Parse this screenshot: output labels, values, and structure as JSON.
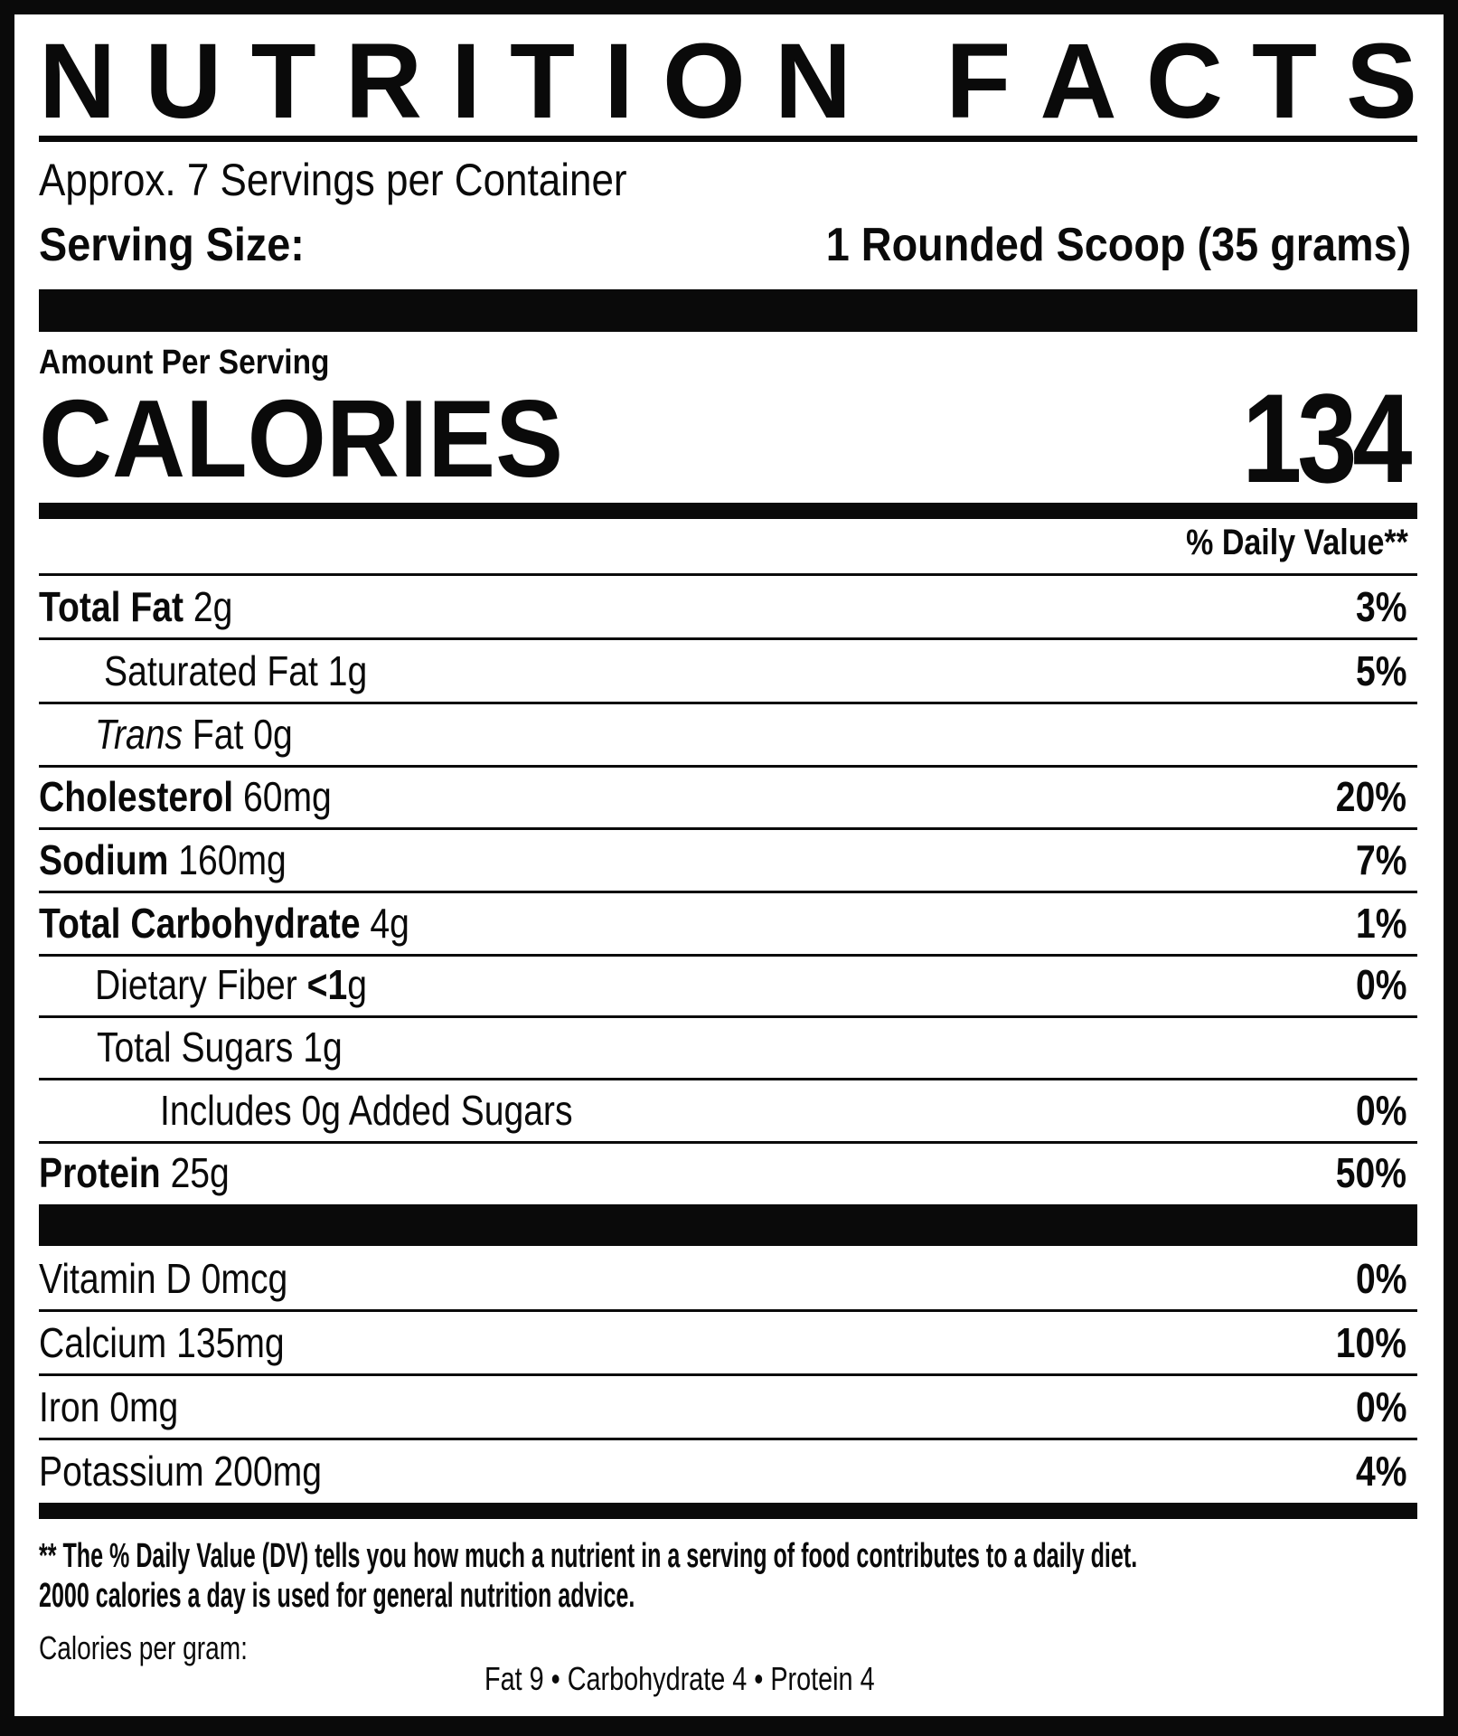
{
  "title": "NUTRITION FACTS",
  "title_letters": [
    "N",
    "U",
    "T",
    "R",
    "I",
    "T",
    "I",
    "O",
    "N",
    " ",
    "F",
    "A",
    "C",
    "T",
    "S"
  ],
  "servings_per_container": "Approx. 7 Servings per Container",
  "serving_size_label": "Serving Size:",
  "serving_size_value": "1 Rounded Scoop (35 grams)",
  "amount_per_serving": "Amount Per Serving",
  "calories_label": "CALORIES",
  "calories_value": "134",
  "daily_value_header": "% Daily Value**",
  "nutrients": [
    {
      "name": "Total Fat",
      "amount": "2g",
      "dv": "3%"
    },
    {
      "name": "Saturated Fat",
      "amount": "1g",
      "dv": "5%"
    },
    {
      "name_italic": "Trans",
      "name": "Fat",
      "amount": "0g",
      "dv": ""
    },
    {
      "name": "Cholesterol",
      "amount": "60mg",
      "dv": "20%"
    },
    {
      "name": "Sodium",
      "amount": "160mg",
      "dv": "7%"
    },
    {
      "name": "Total Carbohydrate",
      "amount": "4g",
      "dv": "1%"
    },
    {
      "name": "Dietary Fiber",
      "amount_bold": "<1",
      "amount": "g",
      "dv": "0%"
    },
    {
      "name": "Total Sugars",
      "amount": "1g",
      "dv": ""
    },
    {
      "name": "Includes 0g Added Sugars",
      "amount": "",
      "dv": "0%"
    },
    {
      "name": "Protein",
      "amount": "25g",
      "dv": "50%"
    }
  ],
  "vitamins": [
    {
      "name": "Vitamin D",
      "amount": "0mcg",
      "dv": "0%"
    },
    {
      "name": "Calcium",
      "amount": "135mg",
      "dv": "10%"
    },
    {
      "name": "Iron",
      "amount": "0mg",
      "dv": "0%"
    },
    {
      "name": "Potassium",
      "amount": "200mg",
      "dv": "4%"
    }
  ],
  "footnote_line1": "** The % Daily Value (DV) tells you how much a nutrient in a serving of food contributes to a daily diet.",
  "footnote_line2": "2000 calories a day is used for general nutrition advice.",
  "calories_per_gram_label": "Calories per gram:",
  "calories_per_gram_values": "Fat 9 • Carbohydrate 4 • Protein 4"
}
